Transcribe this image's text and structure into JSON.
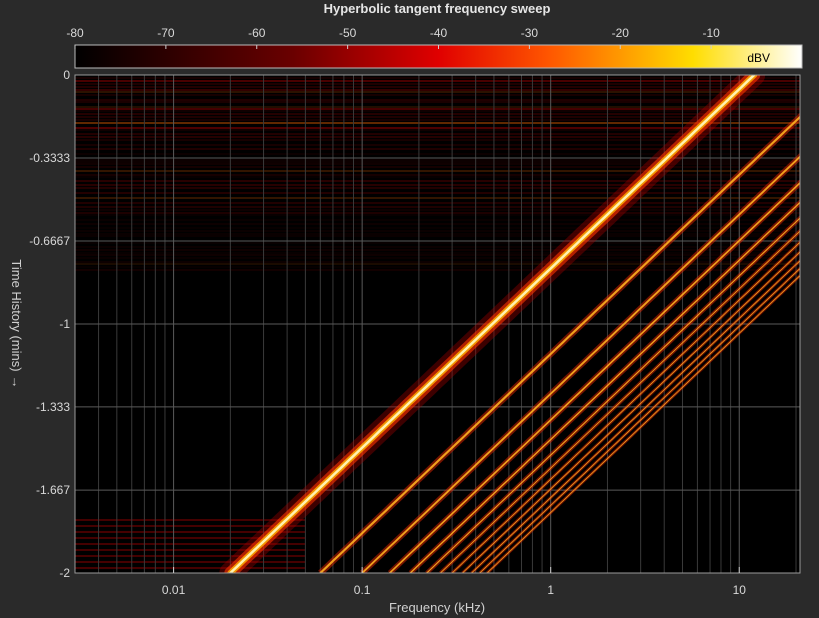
{
  "chart_data": {
    "type": "heatmap",
    "title": "Hyperbolic tangent frequency sweep",
    "xlabel": "Frequency (kHz)",
    "ylabel": "Time History (mins)",
    "ylabel_arrow": "→",
    "x_scale": "log",
    "xlim": [
      0.003,
      21
    ],
    "ylim": [
      -2,
      0
    ],
    "x_ticks": [
      0.01,
      0.1,
      1,
      10
    ],
    "x_tick_labels": [
      "0.01",
      "0.1",
      "1",
      "10"
    ],
    "y_ticks": [
      0,
      -0.3333,
      -0.6667,
      -1,
      -1.333,
      -1.667,
      -2
    ],
    "y_tick_labels": [
      "0",
      "-0.3333",
      "-0.6667",
      "-1",
      "-1.333",
      "-1.667",
      "-2"
    ],
    "colorbar": {
      "range": [
        -80,
        0
      ],
      "ticks": [
        -80,
        -70,
        -60,
        -50,
        -40,
        -30,
        -20,
        -10
      ],
      "tick_labels": [
        "-80",
        "-70",
        "-60",
        "-50",
        "-40",
        "-30",
        "-20",
        "-10"
      ],
      "unit_label": "dBV",
      "colormap": "hot"
    },
    "grid": true,
    "series": [
      {
        "fundamental_start_kHz": 0.02,
        "fundamental_end_kHz": 12,
        "start_time": -2,
        "end_time": 0,
        "harmonics": 12
      }
    ]
  },
  "colors": {
    "background": "#2a2a2a",
    "plot": "#000000",
    "grid": "#4a4a4a"
  }
}
